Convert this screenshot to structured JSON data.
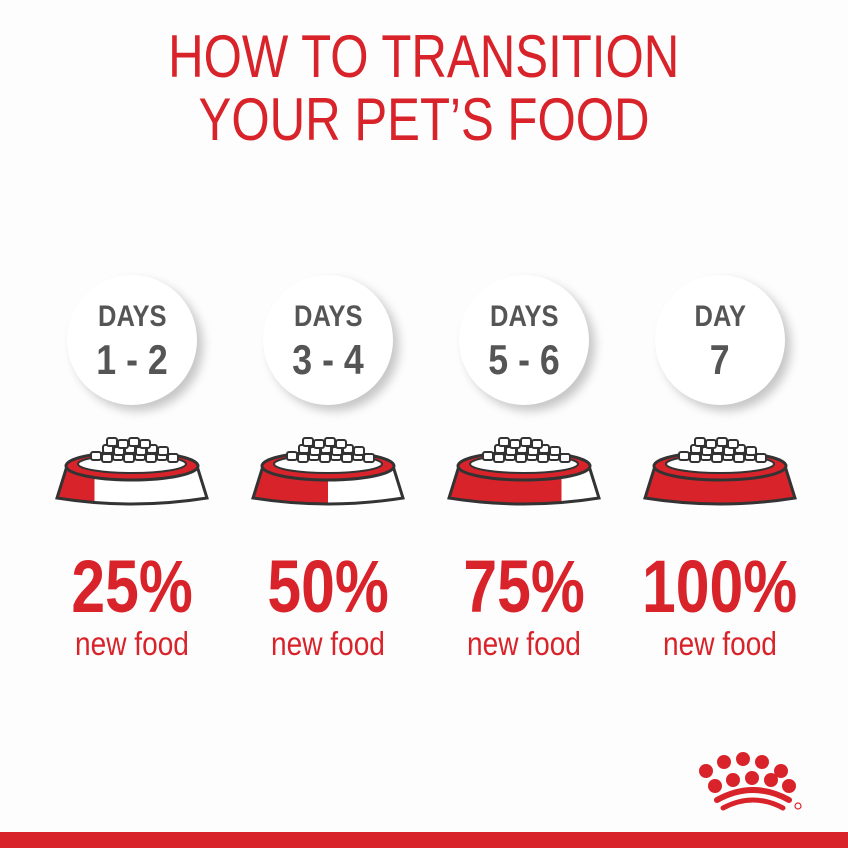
{
  "title": {
    "line1": "HOW TO TRANSITION",
    "line2": "YOUR PET’S FOOD"
  },
  "steps": [
    {
      "label": "DAYS",
      "range": "1 - 2",
      "percent": "25%",
      "caption": "new food",
      "new_food_fraction": 0.25
    },
    {
      "label": "DAYS",
      "range": "3 - 4",
      "percent": "50%",
      "caption": "new food",
      "new_food_fraction": 0.5
    },
    {
      "label": "DAYS",
      "range": "5 - 6",
      "percent": "75%",
      "caption": "new food",
      "new_food_fraction": 0.75
    },
    {
      "label": "DAY",
      "range": "7",
      "percent": "100%",
      "caption": "new food",
      "new_food_fraction": 1.0
    }
  ],
  "colors": {
    "brand_red": "#d9232a",
    "text_gray": "#555555"
  },
  "logo": {
    "icon": "royal-canin-crown-logo"
  }
}
